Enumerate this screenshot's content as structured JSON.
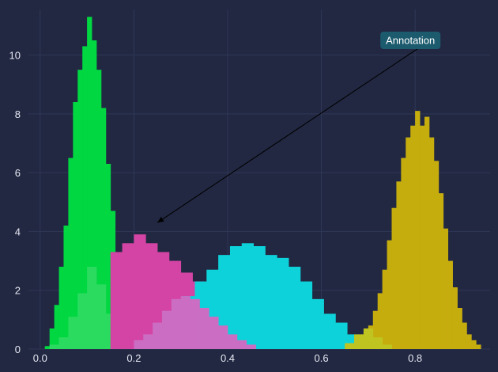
{
  "chart_data": {
    "type": "histogram",
    "title": "",
    "xlabel": "",
    "ylabel": "",
    "xlim": [
      -0.025,
      0.96
    ],
    "ylim": [
      0,
      11.55
    ],
    "grid": true,
    "x_ticks": [
      0.0,
      0.2,
      0.4,
      0.6,
      0.8
    ],
    "x_tick_labels": [
      "0.0",
      "0.2",
      "0.4",
      "0.6",
      "0.8"
    ],
    "y_ticks": [
      0,
      2,
      4,
      6,
      8,
      10
    ],
    "y_tick_labels": [
      "0",
      "2",
      "4",
      "6",
      "8",
      "10"
    ],
    "colors": {
      "background": "#222842",
      "grid": "#2f3757",
      "tick_text": "#e6e8f2"
    },
    "series": [
      {
        "color": "#00d741",
        "bin_start": 0.01,
        "bin_width": 0.01,
        "values": [
          0.1,
          0.7,
          1.5,
          2.8,
          4.2,
          6.5,
          8.4,
          9.5,
          10.3,
          11.3,
          10.5,
          9.5,
          8.2,
          6.3,
          4.7,
          3.2,
          1.9,
          0.9,
          0.4,
          0.1
        ]
      },
      {
        "color": "#2bdb5f",
        "bin_start": 0.02,
        "bin_width": 0.02,
        "values": [
          0.15,
          0.4,
          1.1,
          1.9,
          2.8,
          2.2,
          1.2,
          0.5,
          0.15
        ]
      },
      {
        "color": "#d444a5",
        "bin_start": 0.15,
        "bin_width": 0.025,
        "values": [
          3.3,
          3.6,
          3.9,
          3.6,
          3.3,
          3.0,
          2.6,
          2.3,
          2.2,
          1.9,
          1.6,
          1.3,
          1.0,
          0.7,
          0.5,
          0.3,
          0.2
        ]
      },
      {
        "color": "#0ed2d9",
        "bin_start": 0.23,
        "bin_width": 0.025,
        "values": [
          0.4,
          0.8,
          1.3,
          1.8,
          2.3,
          2.7,
          3.2,
          3.5,
          3.6,
          3.5,
          3.2,
          3.1,
          2.8,
          2.3,
          1.7,
          1.2,
          0.9,
          0.5,
          0.2
        ]
      },
      {
        "color": "#cb6ec3",
        "bin_start": 0.2,
        "bin_width": 0.02,
        "values": [
          0.3,
          0.5,
          0.9,
          1.3,
          1.7,
          1.8,
          1.7,
          1.4,
          1.1,
          0.8,
          0.5,
          0.3,
          0.15
        ]
      },
      {
        "color": "#c6ad0e",
        "bin_start": 0.65,
        "bin_width": 0.01,
        "values": [
          0.1,
          0.2,
          0.3,
          0.5,
          0.6,
          0.8,
          1.3,
          1.9,
          2.7,
          3.7,
          4.8,
          5.7,
          6.5,
          7.2,
          7.6,
          8.1,
          7.6,
          7.9,
          7.2,
          6.4,
          5.3,
          4.1,
          3.0,
          2.1,
          1.4,
          0.9,
          0.5,
          0.3,
          0.15
        ]
      },
      {
        "color": "#bfc420",
        "bin_start": 0.65,
        "bin_width": 0.02,
        "values": [
          0.2,
          0.5,
          0.7,
          0.4,
          0.15
        ]
      }
    ],
    "annotations": [
      {
        "text": "Annotation",
        "arrow_to": [
          0.25,
          4.3
        ],
        "text_at": [
          0.79,
          10.5
        ]
      }
    ]
  }
}
